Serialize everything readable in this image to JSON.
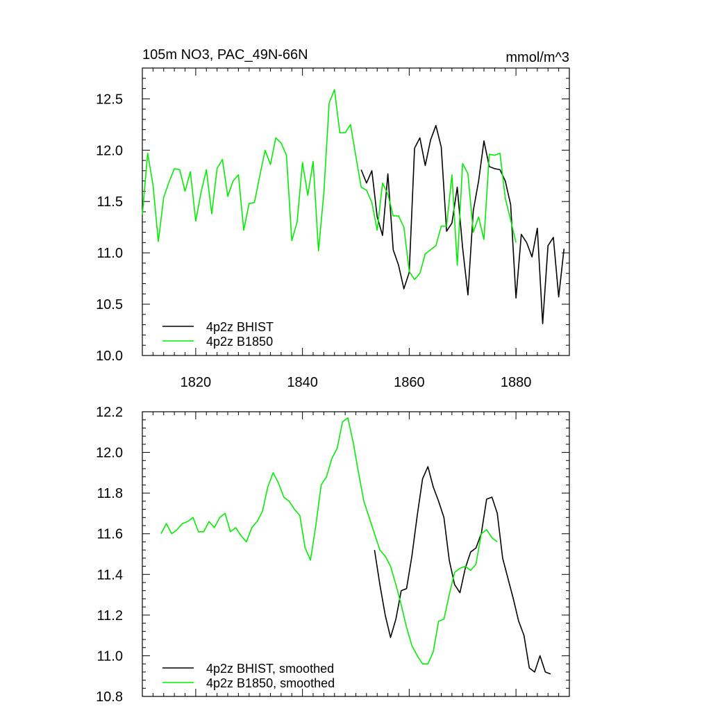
{
  "title_left": "105m NO3, PAC_49N-66N",
  "title_right": "mmol/m^3",
  "colors": {
    "hist": "#000000",
    "b1850": "#00ee00"
  },
  "chart_data": [
    {
      "type": "line",
      "xlim": [
        1810,
        1890
      ],
      "ylim": [
        10.0,
        12.8
      ],
      "xticks": [
        1820,
        1840,
        1860,
        1880
      ],
      "yticks": [
        10.0,
        10.5,
        11.0,
        11.5,
        12.0,
        12.5
      ],
      "x_tick_labels": [
        "1820",
        "1840",
        "1860",
        "1880"
      ],
      "y_tick_labels": [
        "10.0",
        "10.5",
        "11.0",
        "11.5",
        "12.0",
        "12.5"
      ],
      "legend_position": "bottom-left",
      "series": [
        {
          "name": "4p2z BHIST",
          "color": "#000000",
          "x": [
            1851,
            1852,
            1853,
            1854,
            1855,
            1856,
            1857,
            1858,
            1859,
            1860,
            1861,
            1862,
            1863,
            1864,
            1865,
            1866,
            1867,
            1868,
            1869,
            1870,
            1871,
            1872,
            1873,
            1874,
            1875,
            1876,
            1877,
            1878,
            1879,
            1880,
            1881,
            1882,
            1883,
            1884,
            1885,
            1886,
            1887,
            1888,
            1889
          ],
          "y": [
            11.81,
            11.68,
            11.8,
            11.35,
            11.17,
            11.77,
            11.03,
            10.88,
            10.65,
            10.81,
            12.02,
            12.12,
            11.85,
            12.1,
            12.24,
            12.03,
            11.21,
            11.29,
            11.64,
            11.05,
            10.59,
            11.41,
            11.7,
            12.09,
            11.84,
            11.82,
            11.81,
            11.7,
            11.47,
            10.56,
            11.18,
            11.1,
            10.96,
            11.24,
            10.31,
            11.07,
            11.15,
            10.57,
            11.04
          ]
        },
        {
          "name": "4p2z B1850",
          "color": "#00ee00",
          "x": [
            1810,
            1811,
            1812,
            1813,
            1814,
            1815,
            1816,
            1817,
            1818,
            1819,
            1820,
            1821,
            1822,
            1823,
            1824,
            1825,
            1826,
            1827,
            1828,
            1829,
            1830,
            1831,
            1832,
            1833,
            1834,
            1835,
            1836,
            1837,
            1838,
            1839,
            1840,
            1841,
            1842,
            1843,
            1844,
            1845,
            1846,
            1847,
            1848,
            1849,
            1850,
            1851,
            1852,
            1853,
            1854,
            1855,
            1856,
            1857,
            1858,
            1859,
            1860,
            1861,
            1862,
            1863,
            1864,
            1865,
            1866,
            1867,
            1868,
            1869,
            1870,
            1871,
            1872,
            1873,
            1874,
            1875,
            1876,
            1877,
            1878,
            1879,
            1880
          ],
          "y": [
            11.37,
            11.97,
            11.66,
            11.11,
            11.54,
            11.69,
            11.82,
            11.81,
            11.6,
            11.79,
            11.31,
            11.59,
            11.81,
            11.38,
            11.82,
            11.91,
            11.55,
            11.7,
            11.76,
            11.22,
            11.48,
            11.49,
            11.75,
            12.0,
            11.86,
            12.12,
            12.07,
            11.95,
            11.12,
            11.3,
            11.88,
            11.56,
            11.89,
            11.02,
            11.58,
            12.46,
            12.59,
            12.17,
            12.17,
            12.25,
            11.94,
            11.64,
            11.61,
            11.49,
            11.22,
            11.68,
            11.57,
            11.36,
            11.36,
            11.25,
            10.82,
            10.74,
            10.8,
            10.99,
            11.03,
            11.07,
            11.26,
            11.26,
            11.76,
            10.88,
            11.87,
            11.77,
            11.2,
            11.35,
            11.13,
            11.96,
            11.95,
            11.97,
            11.53,
            11.32,
            11.1
          ]
        }
      ]
    },
    {
      "type": "line",
      "xlim": [
        1810,
        1890
      ],
      "ylim": [
        10.8,
        12.2
      ],
      "xticks": [
        1820,
        1840,
        1860,
        1880
      ],
      "yticks": [
        10.8,
        11.0,
        11.2,
        11.4,
        11.6,
        11.8,
        12.0,
        12.2
      ],
      "y_tick_labels": [
        "10.8",
        "11.0",
        "11.2",
        "11.4",
        "11.6",
        "11.8",
        "12.0",
        "12.2"
      ],
      "legend_position": "bottom-left",
      "series": [
        {
          "name": "4p2z BHIST, smoothed",
          "color": "#000000",
          "x": [
            1853.5,
            1854.5,
            1855.5,
            1856.5,
            1857.5,
            1858.5,
            1859.5,
            1860.5,
            1861.5,
            1862.5,
            1863.5,
            1864.5,
            1865.5,
            1866.5,
            1867.5,
            1868.5,
            1869.5,
            1870.5,
            1871.5,
            1872.5,
            1873.5,
            1874.5,
            1875.5,
            1876.5,
            1877.5,
            1878.5,
            1879.5,
            1880.5,
            1881.5,
            1882.5,
            1883.5,
            1884.5,
            1885.5,
            1886.5
          ],
          "y": [
            11.52,
            11.35,
            11.2,
            11.09,
            11.18,
            11.32,
            11.33,
            11.49,
            11.69,
            11.87,
            11.93,
            11.83,
            11.76,
            11.68,
            11.47,
            11.35,
            11.31,
            11.43,
            11.51,
            11.53,
            11.6,
            11.77,
            11.78,
            11.7,
            11.48,
            11.38,
            11.28,
            11.17,
            11.1,
            10.94,
            10.92,
            11.0,
            10.92,
            10.91
          ]
        },
        {
          "name": "4p2z B1850, smoothed",
          "color": "#00ee00",
          "x": [
            1813.5,
            1814.5,
            1815.5,
            1816.5,
            1817.5,
            1818.5,
            1819.5,
            1820.5,
            1821.5,
            1822.5,
            1823.5,
            1824.5,
            1825.5,
            1826.5,
            1827.5,
            1828.5,
            1829.5,
            1830.5,
            1831.5,
            1832.5,
            1833.5,
            1834.5,
            1835.5,
            1836.5,
            1837.5,
            1838.5,
            1839.5,
            1840.5,
            1841.5,
            1842.5,
            1843.5,
            1844.5,
            1845.5,
            1846.5,
            1847.5,
            1848.5,
            1849.5,
            1850.5,
            1851.5,
            1852.5,
            1853.5,
            1854.5,
            1855.5,
            1856.5,
            1857.5,
            1858.5,
            1859.5,
            1860.5,
            1861.5,
            1862.5,
            1863.5,
            1864.5,
            1865.5,
            1866.5,
            1867.5,
            1868.5,
            1869.5,
            1870.5,
            1871.5,
            1872.5,
            1873.5,
            1874.5,
            1875.5,
            1876.5
          ],
          "y": [
            11.6,
            11.65,
            11.6,
            11.62,
            11.65,
            11.66,
            11.68,
            11.61,
            11.61,
            11.66,
            11.63,
            11.68,
            11.7,
            11.61,
            11.63,
            11.59,
            11.56,
            11.63,
            11.66,
            11.71,
            11.83,
            11.9,
            11.85,
            11.78,
            11.76,
            11.72,
            11.69,
            11.53,
            11.47,
            11.64,
            11.84,
            11.88,
            11.97,
            12.02,
            12.15,
            12.17,
            12.05,
            11.9,
            11.76,
            11.68,
            11.6,
            11.52,
            11.49,
            11.44,
            11.35,
            11.25,
            11.14,
            11.05,
            11.0,
            10.96,
            10.96,
            11.02,
            11.17,
            11.18,
            11.3,
            11.41,
            11.43,
            11.44,
            11.42,
            11.45,
            11.6,
            11.62,
            11.58,
            11.56
          ]
        }
      ]
    }
  ]
}
